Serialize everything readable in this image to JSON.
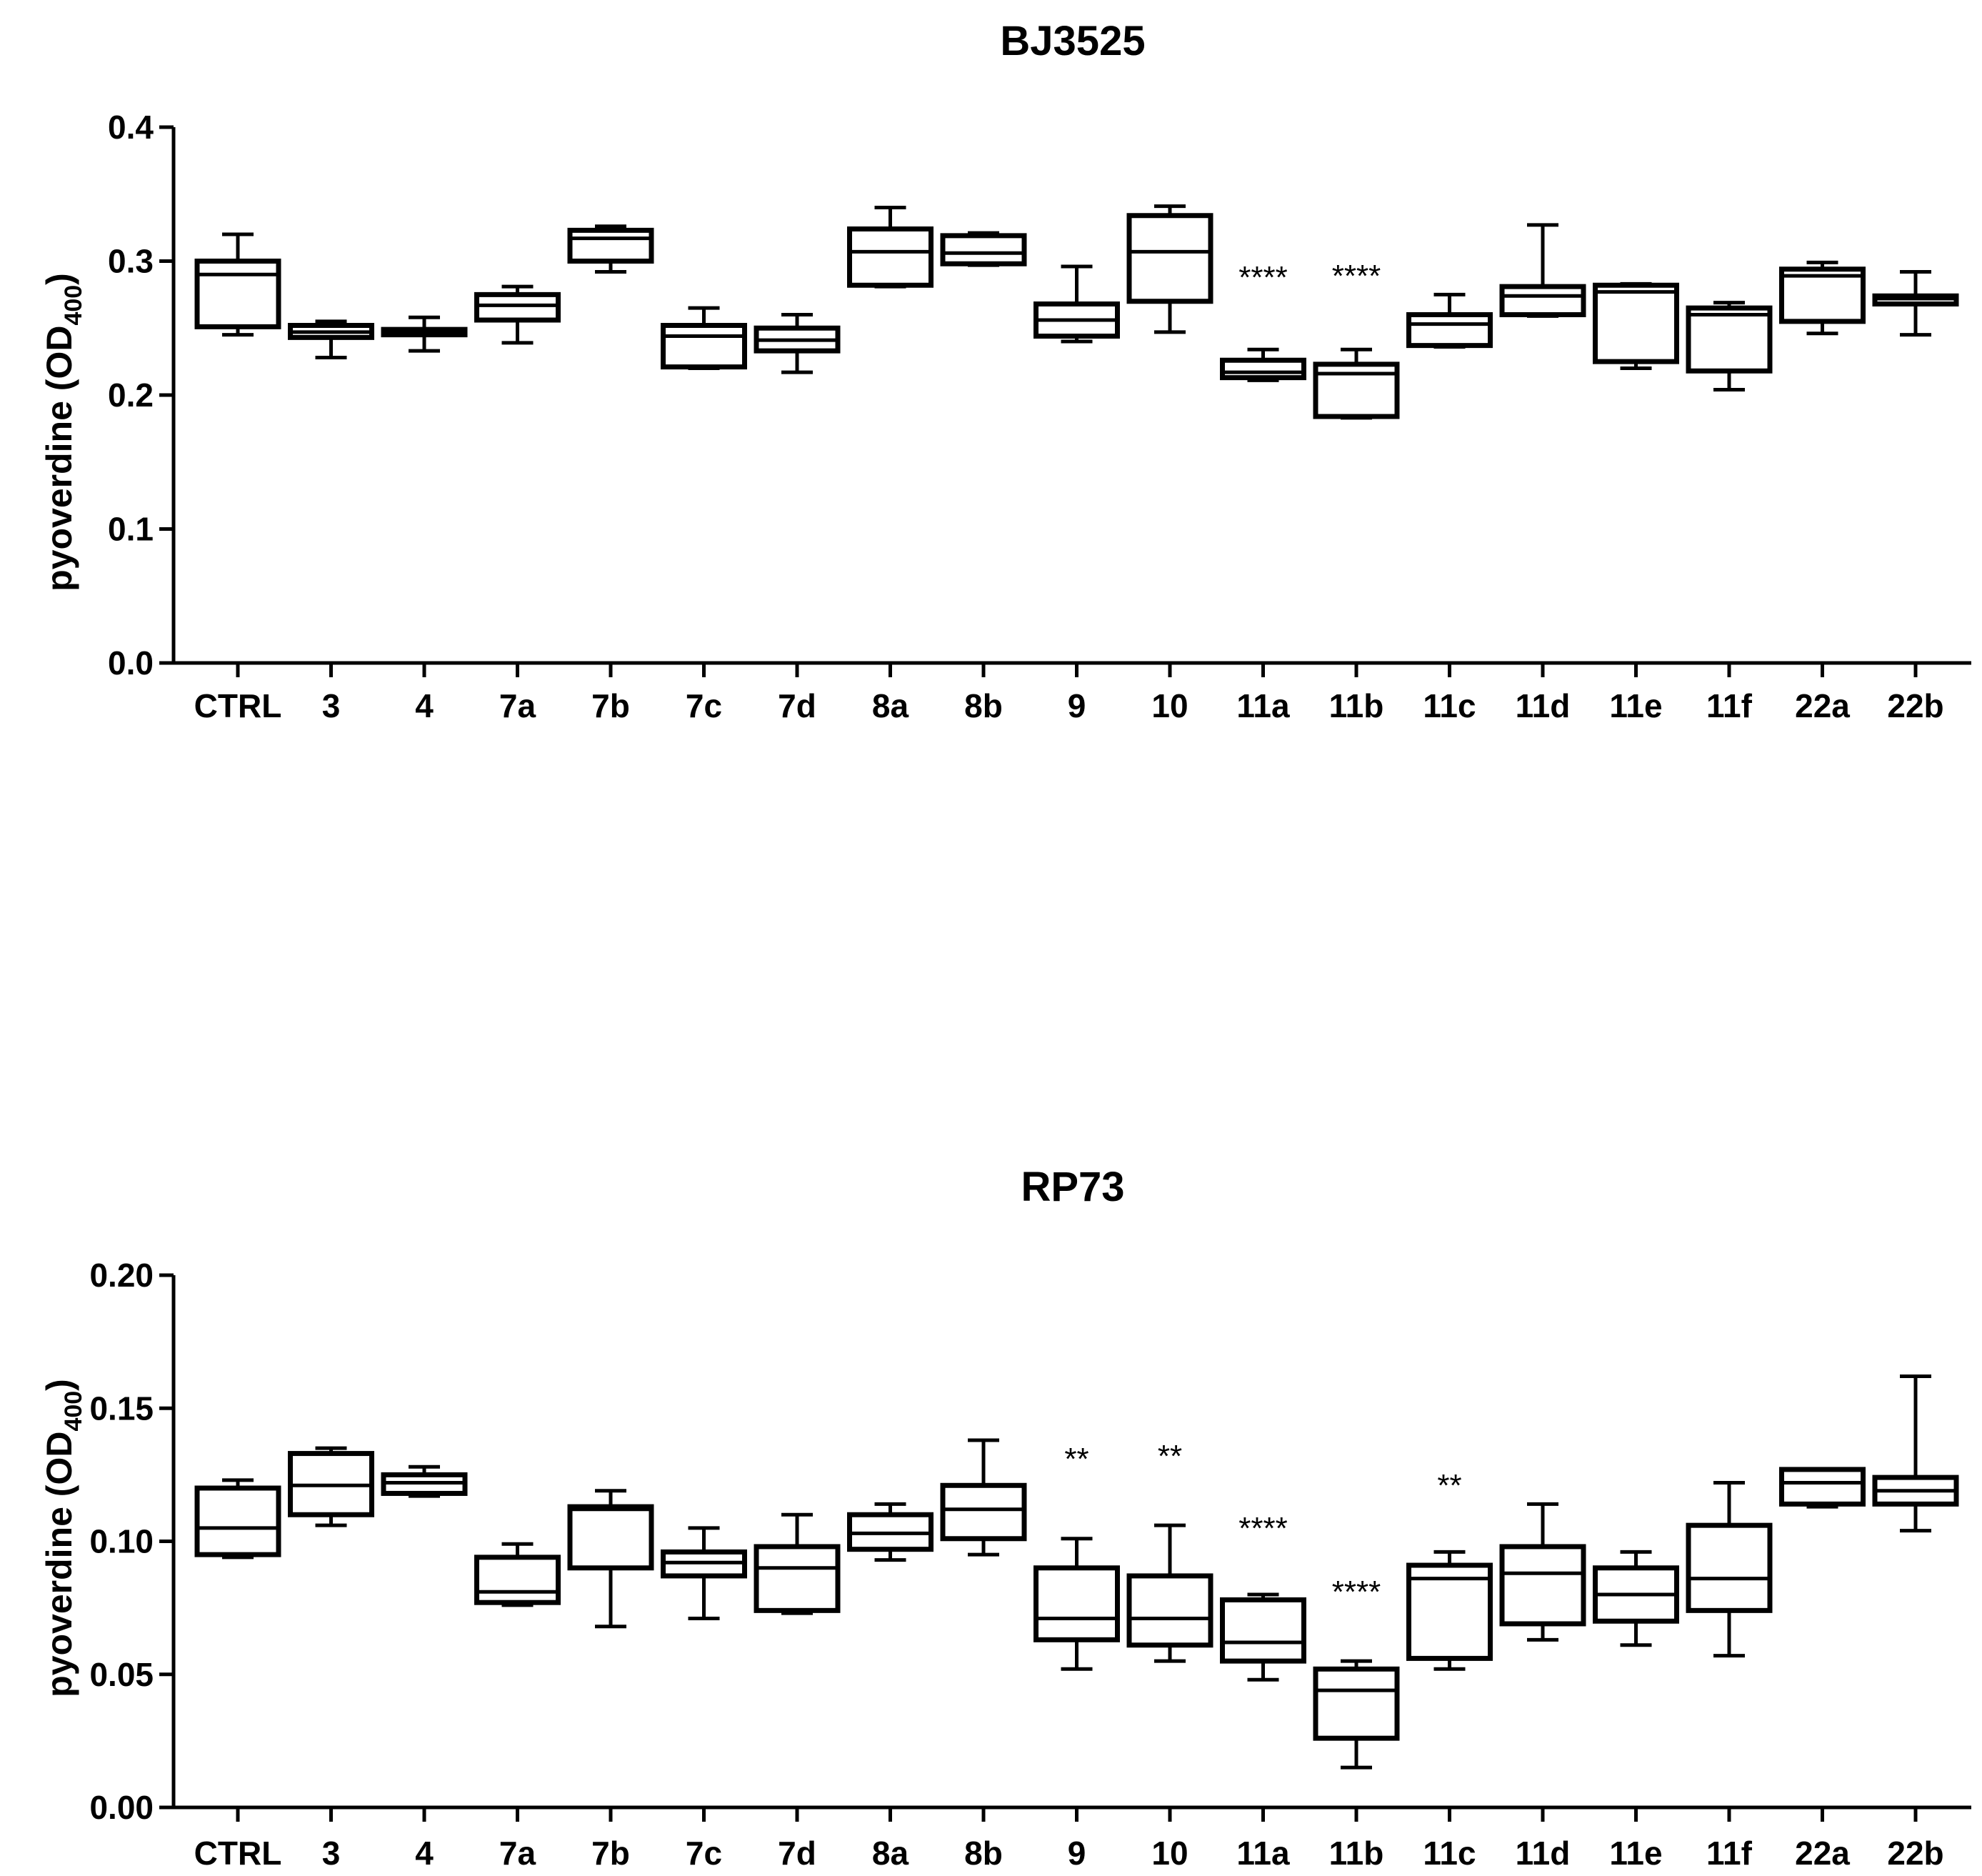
{
  "chart_data": [
    {
      "type": "box",
      "title": "BJ3525",
      "ylabel_main": "pyoverdine (OD",
      "ylabel_sub": "400",
      "ylabel_close": ")",
      "ylim": [
        0.0,
        0.4
      ],
      "yticks": [
        0.0,
        0.1,
        0.2,
        0.3,
        0.4
      ],
      "ytick_labels": [
        "0.0",
        "0.1",
        "0.2",
        "0.3",
        "0.4"
      ],
      "categories": [
        "CTRL",
        "3",
        "4",
        "7a",
        "7b",
        "7c",
        "7d",
        "8a",
        "8b",
        "9",
        "10",
        "11a",
        "11b",
        "11c",
        "11d",
        "11e",
        "11f",
        "22a",
        "22b"
      ],
      "boxes": [
        {
          "min": 0.245,
          "q1": 0.251,
          "median": 0.29,
          "q3": 0.3,
          "max": 0.32
        },
        {
          "min": 0.228,
          "q1": 0.243,
          "median": 0.247,
          "q3": 0.252,
          "max": 0.255
        },
        {
          "min": 0.233,
          "q1": 0.245,
          "median": 0.247,
          "q3": 0.249,
          "max": 0.258
        },
        {
          "min": 0.239,
          "q1": 0.256,
          "median": 0.267,
          "q3": 0.275,
          "max": 0.281
        },
        {
          "min": 0.292,
          "q1": 0.3,
          "median": 0.317,
          "q3": 0.323,
          "max": 0.326
        },
        {
          "min": 0.22,
          "q1": 0.221,
          "median": 0.244,
          "q3": 0.252,
          "max": 0.265
        },
        {
          "min": 0.217,
          "q1": 0.233,
          "median": 0.241,
          "q3": 0.25,
          "max": 0.26
        },
        {
          "min": 0.281,
          "q1": 0.282,
          "median": 0.307,
          "q3": 0.324,
          "max": 0.34
        },
        {
          "min": 0.297,
          "q1": 0.298,
          "median": 0.306,
          "q3": 0.319,
          "max": 0.321
        },
        {
          "min": 0.24,
          "q1": 0.244,
          "median": 0.256,
          "q3": 0.268,
          "max": 0.296
        },
        {
          "min": 0.247,
          "q1": 0.27,
          "median": 0.307,
          "q3": 0.334,
          "max": 0.341
        },
        {
          "min": 0.211,
          "q1": 0.213,
          "median": 0.217,
          "q3": 0.226,
          "max": 0.234
        },
        {
          "min": 0.183,
          "q1": 0.184,
          "median": 0.216,
          "q3": 0.223,
          "max": 0.234
        },
        {
          "min": 0.236,
          "q1": 0.237,
          "median": 0.253,
          "q3": 0.26,
          "max": 0.275
        },
        {
          "min": 0.259,
          "q1": 0.26,
          "median": 0.274,
          "q3": 0.281,
          "max": 0.327
        },
        {
          "min": 0.22,
          "q1": 0.225,
          "median": 0.277,
          "q3": 0.282,
          "max": 0.283
        },
        {
          "min": 0.204,
          "q1": 0.218,
          "median": 0.26,
          "q3": 0.265,
          "max": 0.269
        },
        {
          "min": 0.246,
          "q1": 0.255,
          "median": 0.289,
          "q3": 0.294,
          "max": 0.299
        },
        {
          "min": 0.245,
          "q1": 0.268,
          "median": 0.272,
          "q3": 0.274,
          "max": 0.292
        }
      ],
      "annotations": [
        {
          "category": "11a",
          "text": "****",
          "y": 0.28
        },
        {
          "category": "11b",
          "text": "****",
          "y": 0.281
        }
      ]
    },
    {
      "type": "box",
      "title": "RP73",
      "ylabel_main": "pyoverdine (OD",
      "ylabel_sub": "400",
      "ylabel_close": ")",
      "ylim": [
        0.0,
        0.2
      ],
      "yticks": [
        0.0,
        0.05,
        0.1,
        0.15,
        0.2
      ],
      "ytick_labels": [
        "0.00",
        "0.05",
        "0.10",
        "0.15",
        "0.20"
      ],
      "categories": [
        "CTRL",
        "3",
        "4",
        "7a",
        "7b",
        "7c",
        "7d",
        "8a",
        "8b",
        "9",
        "10",
        "11a",
        "11b",
        "11c",
        "11d",
        "11e",
        "11f",
        "22a",
        "22b"
      ],
      "boxes": [
        {
          "min": 0.094,
          "q1": 0.095,
          "median": 0.105,
          "q3": 0.12,
          "max": 0.123
        },
        {
          "min": 0.106,
          "q1": 0.11,
          "median": 0.121,
          "q3": 0.133,
          "max": 0.135
        },
        {
          "min": 0.117,
          "q1": 0.118,
          "median": 0.122,
          "q3": 0.125,
          "max": 0.128
        },
        {
          "min": 0.076,
          "q1": 0.077,
          "median": 0.081,
          "q3": 0.094,
          "max": 0.099
        },
        {
          "min": 0.068,
          "q1": 0.09,
          "median": 0.112,
          "q3": 0.113,
          "max": 0.119
        },
        {
          "min": 0.071,
          "q1": 0.087,
          "median": 0.092,
          "q3": 0.096,
          "max": 0.105
        },
        {
          "min": 0.073,
          "q1": 0.074,
          "median": 0.09,
          "q3": 0.098,
          "max": 0.11
        },
        {
          "min": 0.093,
          "q1": 0.097,
          "median": 0.103,
          "q3": 0.11,
          "max": 0.114
        },
        {
          "min": 0.095,
          "q1": 0.101,
          "median": 0.112,
          "q3": 0.121,
          "max": 0.138
        },
        {
          "min": 0.052,
          "q1": 0.063,
          "median": 0.071,
          "q3": 0.09,
          "max": 0.101
        },
        {
          "min": 0.055,
          "q1": 0.061,
          "median": 0.071,
          "q3": 0.087,
          "max": 0.106
        },
        {
          "min": 0.048,
          "q1": 0.055,
          "median": 0.062,
          "q3": 0.078,
          "max": 0.08
        },
        {
          "min": 0.015,
          "q1": 0.026,
          "median": 0.044,
          "q3": 0.052,
          "max": 0.055
        },
        {
          "min": 0.052,
          "q1": 0.056,
          "median": 0.086,
          "q3": 0.091,
          "max": 0.096
        },
        {
          "min": 0.063,
          "q1": 0.069,
          "median": 0.088,
          "q3": 0.098,
          "max": 0.114
        },
        {
          "min": 0.061,
          "q1": 0.07,
          "median": 0.08,
          "q3": 0.09,
          "max": 0.096
        },
        {
          "min": 0.057,
          "q1": 0.074,
          "median": 0.086,
          "q3": 0.106,
          "max": 0.122
        },
        {
          "min": 0.113,
          "q1": 0.114,
          "median": 0.122,
          "q3": 0.127,
          "max": 0.127
        },
        {
          "min": 0.104,
          "q1": 0.114,
          "median": 0.119,
          "q3": 0.124,
          "max": 0.162
        }
      ],
      "annotations": [
        {
          "category": "9",
          "text": "**",
          "y": 0.127
        },
        {
          "category": "10",
          "text": "**",
          "y": 0.128
        },
        {
          "category": "11a",
          "text": "****",
          "y": 0.101
        },
        {
          "category": "11b",
          "text": "****",
          "y": 0.077
        },
        {
          "category": "11c",
          "text": "**",
          "y": 0.117
        }
      ]
    }
  ]
}
